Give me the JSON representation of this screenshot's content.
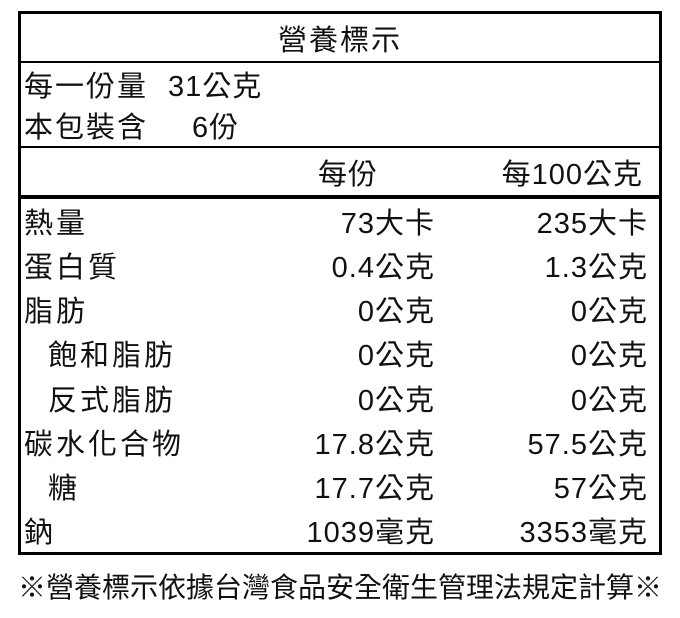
{
  "title": "營養標示",
  "serving_info": [
    {
      "label": "每一份量",
      "value": "31公克"
    },
    {
      "label": "本包裝含",
      "value": "6份"
    }
  ],
  "columns": {
    "per_serving": "每份",
    "per_100g": "每100公克"
  },
  "table": {
    "rows": [
      {
        "label": "熱量",
        "per_serving": "73大卡",
        "per_100g": "235大卡",
        "indent": false
      },
      {
        "label": "蛋白質",
        "per_serving": "0.4公克",
        "per_100g": "1.3公克",
        "indent": false
      },
      {
        "label": "脂肪",
        "per_serving": "0公克",
        "per_100g": "0公克",
        "indent": false
      },
      {
        "label": "飽和脂肪",
        "per_serving": "0公克",
        "per_100g": "0公克",
        "indent": true
      },
      {
        "label": "反式脂肪",
        "per_serving": "0公克",
        "per_100g": "0公克",
        "indent": true
      },
      {
        "label": "碳水化合物",
        "per_serving": "17.8公克",
        "per_100g": "57.5公克",
        "indent": false
      },
      {
        "label": "糖",
        "per_serving": "17.7公克",
        "per_100g": "57公克",
        "indent": true
      },
      {
        "label": "鈉",
        "per_serving": "1039毫克",
        "per_100g": "3353毫克",
        "indent": false
      }
    ]
  },
  "footnote": "※營養標示依據台灣食品安全衛生管理法規定計算※",
  "colors": {
    "border": "#000000",
    "text": "#111111",
    "background": "#ffffff"
  }
}
